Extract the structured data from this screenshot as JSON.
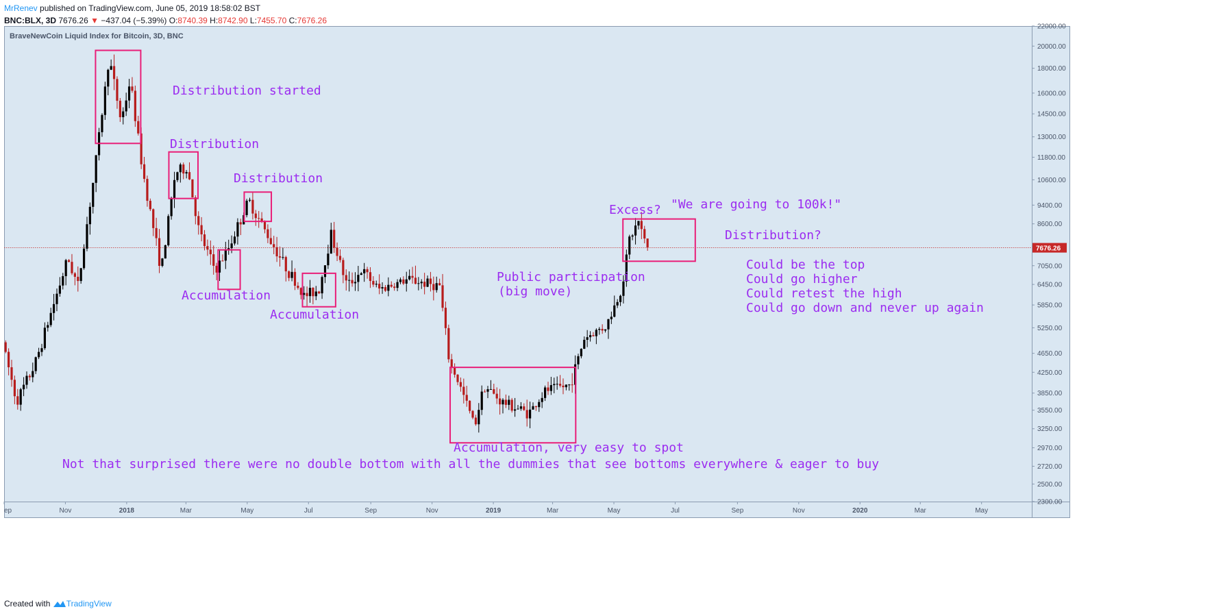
{
  "header": {
    "author": "MrRenev",
    "published": "published on TradingView.com, June 05, 2019 18:58:02 BST",
    "symbol": "BNC:BLX, 3D",
    "last": "7676.26",
    "change": "−437.04 (−5.39%)",
    "open_label": "O:",
    "open": "8740.39",
    "high_label": "H:",
    "high": "8742.90",
    "low_label": "L:",
    "low": "7455.70",
    "close_label": "C:",
    "close": "7676.26"
  },
  "footer": {
    "created_with": "Created with",
    "brand": "TradingView"
  },
  "colors": {
    "background": "#dae7f2",
    "up": "#000000",
    "down": "#b71c1c",
    "box": "#e91e78",
    "annotation": "#9b2cf0",
    "price_line": "#c62828"
  },
  "chart_data": {
    "type": "candlestick",
    "title": "BraveNewCoin Liquid Index for Bitcoin, 3D, BNC",
    "y_scale": "log",
    "ylim": [
      2300,
      22000
    ],
    "y_ticks": [
      "22000.00",
      "20000.00",
      "18000.00",
      "16000.00",
      "14500.00",
      "13000.00",
      "11800.00",
      "10600.00",
      "9400.00",
      "8600.00",
      "7650.00",
      "7050.00",
      "6450.00",
      "5850.00",
      "5250.00",
      "4650.00",
      "4250.00",
      "3850.00",
      "3550.00",
      "3250.00",
      "2970.00",
      "2720.00",
      "2500.00",
      "2300.00"
    ],
    "x_ticks": [
      {
        "label": "ep",
        "date": "2017-09-01"
      },
      {
        "label": "Nov",
        "date": "2017-11-01"
      },
      {
        "label": "2018",
        "date": "2018-01-01"
      },
      {
        "label": "Mar",
        "date": "2018-03-01"
      },
      {
        "label": "May",
        "date": "2018-05-01"
      },
      {
        "label": "Jul",
        "date": "2018-07-01"
      },
      {
        "label": "Sep",
        "date": "2018-09-01"
      },
      {
        "label": "Nov",
        "date": "2018-11-01"
      },
      {
        "label": "2019",
        "date": "2019-01-01"
      },
      {
        "label": "Mar",
        "date": "2019-03-01"
      },
      {
        "label": "May",
        "date": "2019-05-01"
      },
      {
        "label": "Jul",
        "date": "2019-07-01"
      },
      {
        "label": "Sep",
        "date": "2019-09-01"
      },
      {
        "label": "Nov",
        "date": "2019-11-01"
      },
      {
        "label": "2020",
        "date": "2020-01-01"
      },
      {
        "label": "Mar",
        "date": "2020-03-01"
      },
      {
        "label": "May",
        "date": "2020-05-01"
      }
    ],
    "x_range": [
      "2017-09-01",
      "2020-06-20"
    ],
    "current_price": 7676.26,
    "current_price_label": "7676.26",
    "path_points": [
      {
        "date": "2017-09-01",
        "price": 4900
      },
      {
        "date": "2017-09-15",
        "price": 3700
      },
      {
        "date": "2017-10-03",
        "price": 4400
      },
      {
        "date": "2017-10-21",
        "price": 5800
      },
      {
        "date": "2017-11-05",
        "price": 7300
      },
      {
        "date": "2017-11-15",
        "price": 6400
      },
      {
        "date": "2017-12-01",
        "price": 10800
      },
      {
        "date": "2017-12-16",
        "price": 19000
      },
      {
        "date": "2017-12-28",
        "price": 14000
      },
      {
        "date": "2018-01-06",
        "price": 17000
      },
      {
        "date": "2018-01-18",
        "price": 11200
      },
      {
        "date": "2018-02-06",
        "price": 6900
      },
      {
        "date": "2018-02-20",
        "price": 11000
      },
      {
        "date": "2018-03-04",
        "price": 11200
      },
      {
        "date": "2018-03-16",
        "price": 8200
      },
      {
        "date": "2018-04-01",
        "price": 6900
      },
      {
        "date": "2018-04-13",
        "price": 7600
      },
      {
        "date": "2018-05-04",
        "price": 9600
      },
      {
        "date": "2018-05-22",
        "price": 8200
      },
      {
        "date": "2018-06-10",
        "price": 7000
      },
      {
        "date": "2018-06-28",
        "price": 6100
      },
      {
        "date": "2018-07-13",
        "price": 6300
      },
      {
        "date": "2018-07-25",
        "price": 8200
      },
      {
        "date": "2018-08-10",
        "price": 6400
      },
      {
        "date": "2018-08-25",
        "price": 6900
      },
      {
        "date": "2018-09-10",
        "price": 6300
      },
      {
        "date": "2018-10-10",
        "price": 6600
      },
      {
        "date": "2018-11-10",
        "price": 6400
      },
      {
        "date": "2018-11-20",
        "price": 4400
      },
      {
        "date": "2018-11-26",
        "price": 4200
      },
      {
        "date": "2018-12-15",
        "price": 3300
      },
      {
        "date": "2018-12-24",
        "price": 4000
      },
      {
        "date": "2019-01-10",
        "price": 3700
      },
      {
        "date": "2019-02-07",
        "price": 3500
      },
      {
        "date": "2019-02-24",
        "price": 3900
      },
      {
        "date": "2019-03-20",
        "price": 4000
      },
      {
        "date": "2019-04-03",
        "price": 5000
      },
      {
        "date": "2019-04-25",
        "price": 5300
      },
      {
        "date": "2019-05-10",
        "price": 6300
      },
      {
        "date": "2019-05-18",
        "price": 8000
      },
      {
        "date": "2019-05-27",
        "price": 8700
      },
      {
        "date": "2019-06-04",
        "price": 7676
      }
    ],
    "highlight_boxes": [
      {
        "label": "Distribution started",
        "from": "2017-12-01",
        "to": "2018-01-15",
        "low": 12600,
        "high": 19600
      },
      {
        "label": "Distribution",
        "from": "2018-02-12",
        "to": "2018-03-13",
        "low": 9700,
        "high": 12100
      },
      {
        "label": "Distribution",
        "from": "2018-04-28",
        "to": "2018-05-25",
        "low": 8700,
        "high": 10000
      },
      {
        "label": "Accumulation",
        "from": "2018-04-02",
        "to": "2018-04-24",
        "low": 6300,
        "high": 7600
      },
      {
        "label": "Accumulation",
        "from": "2018-06-25",
        "to": "2018-07-28",
        "low": 5800,
        "high": 6800
      },
      {
        "label": "Accumulation, very easy to spot",
        "from": "2018-11-19",
        "to": "2019-03-24",
        "low": 3040,
        "high": 4350
      },
      {
        "label": "Distribution?",
        "from": "2019-05-10",
        "to": "2019-07-21",
        "low": 7200,
        "high": 8800
      }
    ],
    "annotations": [
      {
        "text": "Distribution started",
        "x": 252,
        "y": 138
      },
      {
        "text": "Distribution",
        "x": 248,
        "y": 216
      },
      {
        "text": "Distribution",
        "x": 341,
        "y": 266
      },
      {
        "text": "Accumulation",
        "x": 265,
        "y": 437
      },
      {
        "text": "Accumulation",
        "x": 394,
        "y": 465
      },
      {
        "text": "Excess?",
        "x": 889,
        "y": 312
      },
      {
        "text": "\"We are going to 100k!\"",
        "x": 979,
        "y": 304
      },
      {
        "text": "Distribution?",
        "x": 1058,
        "y": 349
      },
      {
        "text": "Public participation",
        "x": 725,
        "y": 410
      },
      {
        "text": "(big move)",
        "x": 727,
        "y": 431
      },
      {
        "text": "Could be the top",
        "x": 1089,
        "y": 392
      },
      {
        "text": "Could go higher",
        "x": 1089,
        "y": 413
      },
      {
        "text": "Could retest the high",
        "x": 1089,
        "y": 434
      },
      {
        "text": "Could go down and never up again",
        "x": 1089,
        "y": 455
      },
      {
        "text": "Accumulation, very easy to spot",
        "x": 662,
        "y": 659
      },
      {
        "text": "Not that surprised there were no double bottom with all the dummies that see bottoms everywhere & eager to buy",
        "x": 91,
        "y": 683
      }
    ]
  }
}
